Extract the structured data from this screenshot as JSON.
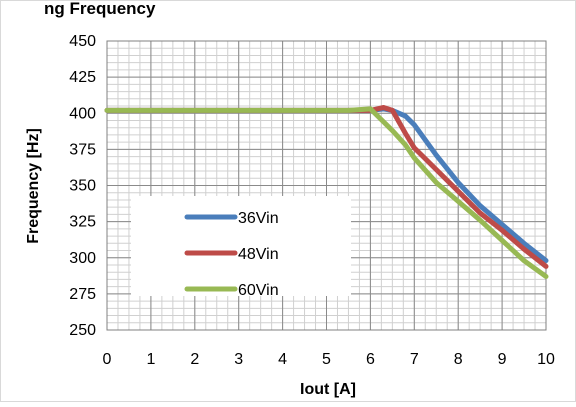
{
  "title": "ng Frequency",
  "chart_data": {
    "type": "line",
    "title": "ng Frequency",
    "xlabel": "Iout [A]",
    "ylabel": "Frequency [Hz]",
    "xlim": [
      0,
      10
    ],
    "ylim": [
      250,
      450
    ],
    "x_ticks": [
      "0",
      "1",
      "2",
      "3",
      "4",
      "5",
      "6",
      "7",
      "8",
      "9",
      "10"
    ],
    "y_ticks": [
      "250",
      "275",
      "300",
      "325",
      "350",
      "375",
      "400",
      "425",
      "450"
    ],
    "grid": true,
    "legend_position": "bottom-left",
    "x": [
      0,
      1,
      2,
      3,
      4,
      5,
      5.5,
      6,
      6.3,
      6.5,
      6.8,
      7,
      7.5,
      8,
      8.5,
      9,
      9.5,
      10
    ],
    "series": [
      {
        "name": "36Vin",
        "color": "#4a7ebb",
        "values": [
          402,
          402,
          402,
          402,
          402,
          402,
          402,
          402,
          403,
          402,
          398,
          392,
          371,
          352,
          336,
          323,
          310,
          298
        ]
      },
      {
        "name": "48Vin",
        "color": "#be4b48",
        "values": [
          402,
          402,
          402,
          402,
          402,
          402,
          402,
          402,
          404,
          402,
          386,
          376,
          361,
          346,
          331,
          319,
          306,
          294
        ]
      },
      {
        "name": "60Vin",
        "color": "#98b954",
        "values": [
          402,
          402,
          402,
          402,
          402,
          402,
          402,
          403,
          394,
          388,
          378,
          369,
          352,
          339,
          326,
          312,
          298,
          287
        ]
      }
    ]
  }
}
